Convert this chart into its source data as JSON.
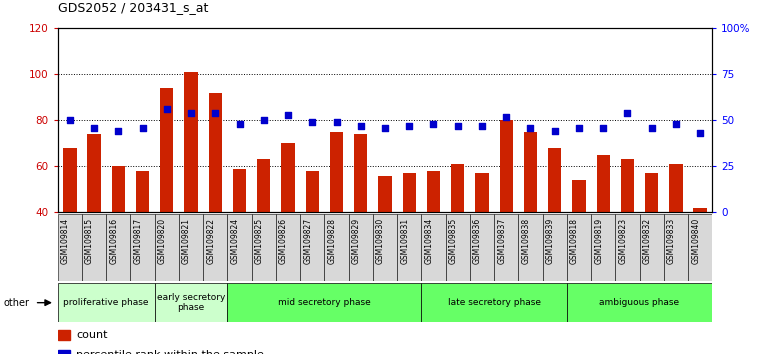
{
  "title": "GDS2052 / 203431_s_at",
  "samples": [
    "GSM109814",
    "GSM109815",
    "GSM109816",
    "GSM109817",
    "GSM109820",
    "GSM109821",
    "GSM109822",
    "GSM109824",
    "GSM109825",
    "GSM109826",
    "GSM109827",
    "GSM109828",
    "GSM109829",
    "GSM109830",
    "GSM109831",
    "GSM109834",
    "GSM109835",
    "GSM109836",
    "GSM109837",
    "GSM109838",
    "GSM109839",
    "GSM109818",
    "GSM109819",
    "GSM109823",
    "GSM109832",
    "GSM109833",
    "GSM109840"
  ],
  "count": [
    68,
    74,
    60,
    58,
    94,
    101,
    92,
    59,
    63,
    70,
    58,
    75,
    74,
    56,
    57,
    58,
    61,
    57,
    80,
    75,
    68,
    54,
    65,
    63,
    57,
    61,
    42
  ],
  "percentile_pct": [
    50,
    46,
    44,
    46,
    56,
    54,
    54,
    48,
    50,
    53,
    49,
    49,
    47,
    46,
    47,
    48,
    47,
    47,
    52,
    46,
    44,
    46,
    46,
    54,
    46,
    48,
    43
  ],
  "phases": [
    {
      "label": "proliferative phase",
      "start": 0,
      "end": 4,
      "color": "#ccffcc"
    },
    {
      "label": "early secretory\nphase",
      "start": 4,
      "end": 7,
      "color": "#ccffcc"
    },
    {
      "label": "mid secretory phase",
      "start": 7,
      "end": 15,
      "color": "#66ff66"
    },
    {
      "label": "late secretory phase",
      "start": 15,
      "end": 21,
      "color": "#66ff66"
    },
    {
      "label": "ambiguous phase",
      "start": 21,
      "end": 27,
      "color": "#66ff66"
    }
  ],
  "ylim_left": [
    40,
    120
  ],
  "ylim_right": [
    0,
    100
  ],
  "bar_color": "#cc2200",
  "dot_color": "#0000cc",
  "background_color": "#ffffff",
  "tick_bg_color": "#d8d8d8"
}
